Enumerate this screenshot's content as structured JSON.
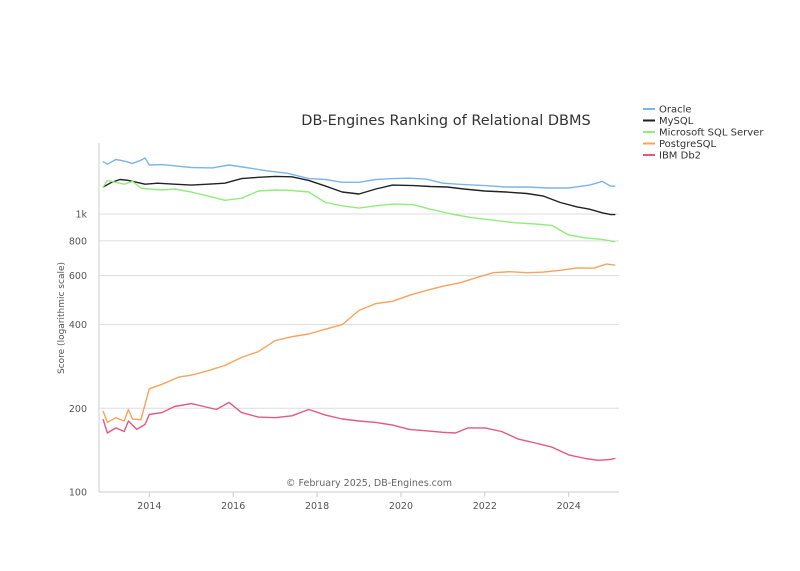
{
  "chart_data": {
    "type": "line",
    "title": "DB-Engines Ranking of Relational DBMS",
    "ylabel": "Score (logarithmic scale)",
    "xlabel": "",
    "credit": "© February 2025, DB-Engines.com",
    "y_scale": "log",
    "ylim": [
      100,
      1800
    ],
    "xlim": [
      2012.8,
      2025.2
    ],
    "yticks": [
      {
        "value": 100,
        "label": "100"
      },
      {
        "value": 200,
        "label": "200"
      },
      {
        "value": 400,
        "label": "400"
      },
      {
        "value": 600,
        "label": "600"
      },
      {
        "value": 800,
        "label": "800"
      },
      {
        "value": 1000,
        "label": "1k"
      }
    ],
    "xticks": [
      {
        "value": 2014,
        "label": "2014"
      },
      {
        "value": 2016,
        "label": "2016"
      },
      {
        "value": 2018,
        "label": "2018"
      },
      {
        "value": 2020,
        "label": "2020"
      },
      {
        "value": 2022,
        "label": "2022"
      },
      {
        "value": 2024,
        "label": "2024"
      }
    ],
    "grid": true,
    "legend_position": "top-right",
    "series": [
      {
        "name": "Oracle",
        "color": "#7cb5ec",
        "points": [
          [
            2012.9,
            1540
          ],
          [
            2013.0,
            1510
          ],
          [
            2013.2,
            1570
          ],
          [
            2013.4,
            1550
          ],
          [
            2013.6,
            1520
          ],
          [
            2013.8,
            1560
          ],
          [
            2013.9,
            1590
          ],
          [
            2014.0,
            1500
          ],
          [
            2014.3,
            1505
          ],
          [
            2014.6,
            1490
          ],
          [
            2015.0,
            1470
          ],
          [
            2015.5,
            1465
          ],
          [
            2015.9,
            1500
          ],
          [
            2016.3,
            1470
          ],
          [
            2016.8,
            1430
          ],
          [
            2017.3,
            1400
          ],
          [
            2017.8,
            1340
          ],
          [
            2018.2,
            1330
          ],
          [
            2018.6,
            1300
          ],
          [
            2019.0,
            1300
          ],
          [
            2019.4,
            1330
          ],
          [
            2019.8,
            1340
          ],
          [
            2020.2,
            1345
          ],
          [
            2020.6,
            1335
          ],
          [
            2021.0,
            1290
          ],
          [
            2021.5,
            1275
          ],
          [
            2022.0,
            1265
          ],
          [
            2022.5,
            1250
          ],
          [
            2023.0,
            1250
          ],
          [
            2023.5,
            1240
          ],
          [
            2024.0,
            1240
          ],
          [
            2024.5,
            1270
          ],
          [
            2024.8,
            1310
          ],
          [
            2025.0,
            1260
          ],
          [
            2025.1,
            1260
          ]
        ]
      },
      {
        "name": "MySQL",
        "color": "#222222",
        "points": [
          [
            2012.9,
            1250
          ],
          [
            2013.1,
            1300
          ],
          [
            2013.3,
            1330
          ],
          [
            2013.5,
            1320
          ],
          [
            2013.7,
            1300
          ],
          [
            2013.9,
            1280
          ],
          [
            2014.2,
            1290
          ],
          [
            2014.6,
            1280
          ],
          [
            2015.0,
            1270
          ],
          [
            2015.4,
            1280
          ],
          [
            2015.8,
            1290
          ],
          [
            2016.2,
            1340
          ],
          [
            2016.6,
            1355
          ],
          [
            2017.0,
            1365
          ],
          [
            2017.4,
            1360
          ],
          [
            2017.8,
            1320
          ],
          [
            2018.2,
            1260
          ],
          [
            2018.6,
            1200
          ],
          [
            2019.0,
            1180
          ],
          [
            2019.4,
            1230
          ],
          [
            2019.8,
            1270
          ],
          [
            2020.3,
            1265
          ],
          [
            2020.7,
            1255
          ],
          [
            2021.1,
            1250
          ],
          [
            2021.5,
            1230
          ],
          [
            2022.0,
            1210
          ],
          [
            2022.5,
            1200
          ],
          [
            2023.0,
            1185
          ],
          [
            2023.4,
            1160
          ],
          [
            2023.8,
            1100
          ],
          [
            2024.2,
            1060
          ],
          [
            2024.5,
            1040
          ],
          [
            2024.8,
            1010
          ],
          [
            2025.0,
            995
          ],
          [
            2025.1,
            995
          ]
        ]
      },
      {
        "name": "Microsoft SQL Server",
        "color": "#90ed7d",
        "points": [
          [
            2012.9,
            1250
          ],
          [
            2013.0,
            1320
          ],
          [
            2013.2,
            1300
          ],
          [
            2013.4,
            1280
          ],
          [
            2013.6,
            1310
          ],
          [
            2013.8,
            1240
          ],
          [
            2014.0,
            1230
          ],
          [
            2014.3,
            1220
          ],
          [
            2014.6,
            1230
          ],
          [
            2015.0,
            1200
          ],
          [
            2015.4,
            1160
          ],
          [
            2015.8,
            1120
          ],
          [
            2016.2,
            1140
          ],
          [
            2016.6,
            1210
          ],
          [
            2017.0,
            1220
          ],
          [
            2017.4,
            1215
          ],
          [
            2017.8,
            1200
          ],
          [
            2018.2,
            1100
          ],
          [
            2018.6,
            1070
          ],
          [
            2019.0,
            1050
          ],
          [
            2019.4,
            1070
          ],
          [
            2019.8,
            1085
          ],
          [
            2020.3,
            1080
          ],
          [
            2020.7,
            1040
          ],
          [
            2021.2,
            1000
          ],
          [
            2021.7,
            970
          ],
          [
            2022.2,
            950
          ],
          [
            2022.7,
            930
          ],
          [
            2023.2,
            920
          ],
          [
            2023.6,
            910
          ],
          [
            2024.0,
            840
          ],
          [
            2024.4,
            820
          ],
          [
            2024.8,
            810
          ],
          [
            2025.0,
            800
          ],
          [
            2025.1,
            795
          ]
        ]
      },
      {
        "name": "PostgreSQL",
        "color": "#f7a35c",
        "points": [
          [
            2012.9,
            195
          ],
          [
            2013.0,
            178
          ],
          [
            2013.2,
            185
          ],
          [
            2013.4,
            180
          ],
          [
            2013.5,
            198
          ],
          [
            2013.6,
            183
          ],
          [
            2013.8,
            182
          ],
          [
            2014.0,
            235
          ],
          [
            2014.3,
            244
          ],
          [
            2014.7,
            259
          ],
          [
            2015.0,
            263
          ],
          [
            2015.4,
            273
          ],
          [
            2015.8,
            285
          ],
          [
            2016.2,
            305
          ],
          [
            2016.6,
            320
          ],
          [
            2017.0,
            350
          ],
          [
            2017.4,
            362
          ],
          [
            2017.8,
            370
          ],
          [
            2018.2,
            385
          ],
          [
            2018.6,
            400
          ],
          [
            2019.0,
            450
          ],
          [
            2019.4,
            476
          ],
          [
            2019.8,
            485
          ],
          [
            2020.2,
            510
          ],
          [
            2020.6,
            530
          ],
          [
            2021.0,
            550
          ],
          [
            2021.4,
            565
          ],
          [
            2021.8,
            590
          ],
          [
            2022.2,
            615
          ],
          [
            2022.6,
            620
          ],
          [
            2023.0,
            615
          ],
          [
            2023.4,
            618
          ],
          [
            2023.8,
            627
          ],
          [
            2024.2,
            640
          ],
          [
            2024.6,
            638
          ],
          [
            2024.9,
            660
          ],
          [
            2025.1,
            655
          ]
        ]
      },
      {
        "name": "IBM Db2",
        "color": "#e4587e",
        "points": [
          [
            2012.9,
            182
          ],
          [
            2013.0,
            163
          ],
          [
            2013.2,
            170
          ],
          [
            2013.4,
            165
          ],
          [
            2013.5,
            180
          ],
          [
            2013.7,
            168
          ],
          [
            2013.9,
            175
          ],
          [
            2014.0,
            190
          ],
          [
            2014.3,
            193
          ],
          [
            2014.6,
            203
          ],
          [
            2015.0,
            208
          ],
          [
            2015.3,
            203
          ],
          [
            2015.6,
            198
          ],
          [
            2015.9,
            210
          ],
          [
            2016.2,
            193
          ],
          [
            2016.6,
            186
          ],
          [
            2017.0,
            185
          ],
          [
            2017.4,
            188
          ],
          [
            2017.8,
            198
          ],
          [
            2018.2,
            189
          ],
          [
            2018.6,
            183
          ],
          [
            2019.0,
            180
          ],
          [
            2019.4,
            178
          ],
          [
            2019.8,
            174
          ],
          [
            2020.2,
            168
          ],
          [
            2020.6,
            166
          ],
          [
            2021.0,
            164
          ],
          [
            2021.3,
            163
          ],
          [
            2021.6,
            170
          ],
          [
            2022.0,
            170
          ],
          [
            2022.4,
            165
          ],
          [
            2022.8,
            155
          ],
          [
            2023.2,
            150
          ],
          [
            2023.6,
            145
          ],
          [
            2024.0,
            136
          ],
          [
            2024.4,
            132
          ],
          [
            2024.7,
            130
          ],
          [
            2025.0,
            131
          ],
          [
            2025.1,
            132
          ]
        ]
      }
    ]
  }
}
